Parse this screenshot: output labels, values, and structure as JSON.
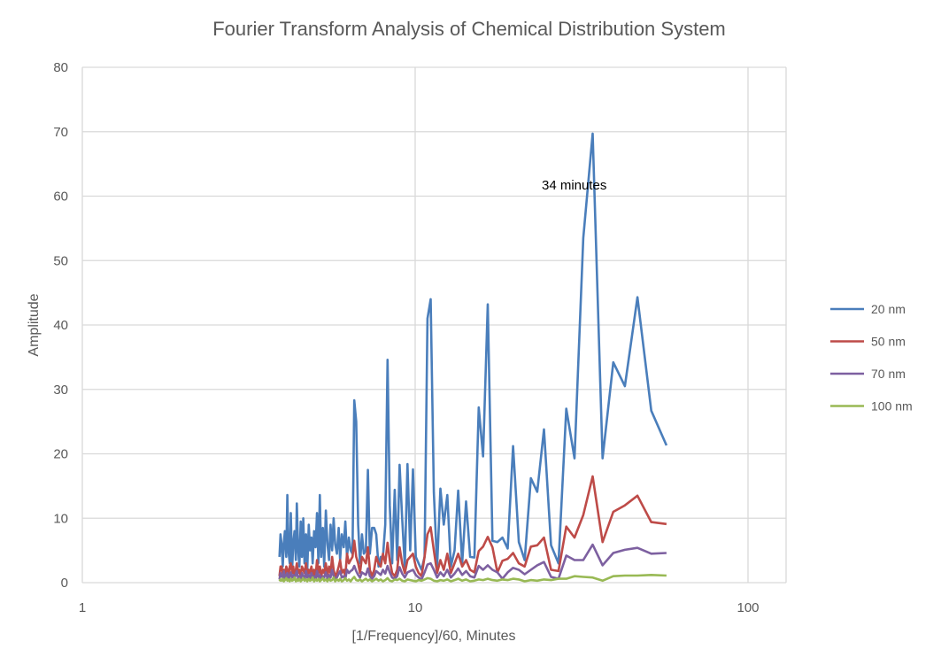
{
  "chart_data": {
    "type": "line",
    "title": "Fourier Transform Analysis of Chemical Distribution System",
    "xlabel": "[1/Frequency]/60, Minutes",
    "ylabel": "Amplitude",
    "x_scale": "log",
    "xlim": [
      1,
      130
    ],
    "ylim": [
      0,
      80
    ],
    "x_ticks": [
      "1",
      "10",
      "100"
    ],
    "y_ticks": [
      "0",
      "10",
      "20",
      "30",
      "40",
      "50",
      "60",
      "70",
      "80"
    ],
    "grid": true,
    "legend_position": "right",
    "annotation": {
      "text": "34 minutes",
      "x": 34.13,
      "y": 69.7
    },
    "x": [
      3.91,
      3.94,
      3.97,
      4.0,
      4.03,
      4.06,
      4.1,
      4.13,
      4.16,
      4.2,
      4.23,
      4.27,
      4.3,
      4.34,
      4.38,
      4.41,
      4.45,
      4.49,
      4.53,
      4.57,
      4.61,
      4.65,
      4.7,
      4.74,
      4.79,
      4.83,
      4.88,
      4.92,
      4.97,
      5.02,
      5.07,
      5.12,
      5.17,
      5.22,
      5.28,
      5.33,
      5.39,
      5.45,
      5.51,
      5.57,
      5.63,
      5.69,
      5.75,
      5.82,
      5.89,
      5.95,
      6.02,
      6.1,
      6.17,
      6.24,
      6.32,
      6.4,
      6.48,
      6.56,
      6.65,
      6.74,
      6.83,
      6.92,
      7.01,
      7.11,
      7.21,
      7.31,
      7.42,
      7.53,
      7.64,
      7.76,
      7.88,
      8.0,
      8.13,
      8.26,
      8.39,
      8.53,
      8.68,
      8.83,
      8.98,
      9.14,
      9.31,
      9.48,
      9.66,
      9.85,
      10.04,
      10.24,
      10.45,
      10.67,
      10.89,
      11.13,
      11.38,
      11.64,
      11.91,
      12.19,
      12.49,
      12.8,
      13.13,
      13.47,
      13.84,
      14.22,
      14.63,
      15.06,
      15.52,
      16.0,
      16.52,
      17.07,
      17.66,
      18.29,
      18.96,
      19.69,
      20.48,
      21.33,
      22.26,
      23.27,
      24.38,
      25.6,
      26.95,
      28.44,
      30.12,
      32.0,
      34.13,
      36.57,
      39.38,
      42.67,
      46.55,
      51.2,
      56.89
    ],
    "series": [
      {
        "name": "20 nm",
        "color": "#4a7ebb",
        "values": [
          4.0,
          7.5,
          6.0,
          2.5,
          6.0,
          8.0,
          4.0,
          13.6,
          5.0,
          3.0,
          10.8,
          2.0,
          6.0,
          8.0,
          3.5,
          12.3,
          5.0,
          2.5,
          9.5,
          4.0,
          10.0,
          3.0,
          7.5,
          2.0,
          9.0,
          5.0,
          7.0,
          3.0,
          8.0,
          5.5,
          10.8,
          3.0,
          13.6,
          4.0,
          8.5,
          2.5,
          11.2,
          6.0,
          3.5,
          9.0,
          5.0,
          10.0,
          6.0,
          4.5,
          8.5,
          3.5,
          7.5,
          5.5,
          9.5,
          4.0,
          7.0,
          5.0,
          4.5,
          28.3,
          25.0,
          9.0,
          3.0,
          7.5,
          4.5,
          5.0,
          17.5,
          4.5,
          8.5,
          8.5,
          7.5,
          2.5,
          4.0,
          4.0,
          9.0,
          34.6,
          12.0,
          3.0,
          14.4,
          3.5,
          18.3,
          10.0,
          2.5,
          18.4,
          5.0,
          17.6,
          4.0,
          3.0,
          2.0,
          4.0,
          41.0,
          44.0,
          14.0,
          2.5,
          14.6,
          9.0,
          13.6,
          2.5,
          5.0,
          14.3,
          3.0,
          12.6,
          4.0,
          3.9,
          27.2,
          19.6,
          43.2,
          6.5,
          6.3,
          7.0,
          5.3,
          21.2,
          6.3,
          3.5,
          16.2,
          14.1,
          23.8,
          5.8,
          3.0,
          27.0,
          19.3,
          53.5,
          69.7,
          19.3,
          34.2,
          30.5,
          44.3,
          26.7,
          21.3
        ]
      },
      {
        "name": "50 nm",
        "color": "#be4b48",
        "values": [
          1.0,
          2.5,
          2.5,
          1.5,
          2.0,
          1.0,
          2.5,
          2.0,
          1.0,
          2.5,
          3.0,
          1.5,
          2.5,
          1.0,
          2.0,
          3.0,
          1.5,
          2.0,
          1.0,
          2.5,
          2.0,
          1.5,
          3.0,
          1.0,
          2.0,
          1.5,
          2.5,
          1.0,
          2.0,
          1.0,
          3.5,
          1.5,
          2.5,
          1.0,
          2.0,
          1.5,
          3.0,
          1.0,
          2.5,
          1.5,
          4.0,
          2.0,
          1.0,
          1.5,
          2.5,
          3.5,
          1.5,
          2.0,
          1.0,
          4.5,
          3.0,
          3.5,
          4.0,
          6.5,
          4.0,
          3.0,
          1.5,
          4.0,
          3.5,
          3.0,
          5.5,
          2.0,
          1.0,
          2.0,
          4.0,
          3.0,
          2.5,
          4.5,
          3.0,
          6.2,
          3.5,
          1.5,
          1.0,
          2.0,
          5.5,
          3.0,
          1.5,
          3.5,
          4.0,
          4.5,
          2.5,
          1.5,
          1.0,
          4.0,
          7.5,
          8.6,
          5.0,
          1.5,
          3.5,
          2.0,
          4.5,
          1.5,
          3.0,
          4.5,
          2.5,
          3.5,
          2.0,
          1.6,
          4.9,
          5.6,
          7.1,
          5.5,
          1.6,
          3.4,
          3.7,
          4.6,
          3.0,
          2.5,
          5.6,
          5.8,
          7.0,
          2.0,
          1.8,
          8.7,
          7.0,
          10.5,
          16.5,
          6.3,
          11.0,
          12.0,
          13.5,
          9.4,
          9.1
        ]
      },
      {
        "name": "70 nm",
        "color": "#7d60a0",
        "values": [
          0.5,
          1.5,
          1.0,
          0.8,
          1.8,
          0.6,
          1.2,
          1.5,
          0.5,
          1.0,
          1.6,
          0.8,
          1.2,
          0.5,
          1.4,
          1.8,
          0.7,
          1.0,
          0.6,
          1.5,
          1.0,
          0.5,
          1.8,
          0.8,
          1.2,
          0.6,
          1.5,
          0.7,
          1.0,
          0.5,
          1.8,
          0.8,
          1.2,
          0.5,
          1.0,
          0.8,
          1.6,
          0.6,
          1.2,
          0.8,
          2.0,
          1.0,
          0.6,
          0.8,
          1.4,
          1.8,
          0.8,
          1.0,
          0.6,
          2.0,
          1.5,
          1.8,
          2.0,
          2.6,
          1.8,
          1.2,
          0.8,
          1.6,
          1.4,
          1.2,
          2.2,
          1.0,
          0.6,
          1.0,
          1.8,
          1.5,
          1.2,
          2.0,
          1.4,
          2.6,
          1.6,
          0.8,
          0.6,
          1.0,
          2.4,
          1.4,
          0.8,
          1.6,
          1.8,
          2.0,
          1.2,
          0.8,
          0.5,
          1.6,
          2.8,
          3.0,
          2.0,
          0.8,
          1.6,
          1.0,
          2.0,
          0.8,
          1.4,
          2.2,
          1.2,
          1.8,
          1.0,
          0.8,
          2.6,
          2.0,
          2.7,
          2.0,
          1.6,
          0.6,
          1.6,
          2.3,
          2.0,
          1.3,
          2.0,
          2.7,
          3.2,
          0.9,
          0.6,
          4.2,
          3.5,
          3.5,
          5.9,
          2.7,
          4.6,
          5.1,
          5.4,
          4.5,
          4.6
        ]
      },
      {
        "name": "100 nm",
        "color": "#98b954",
        "values": [
          0.2,
          0.5,
          0.3,
          0.6,
          0.2,
          0.4,
          0.7,
          0.3,
          0.5,
          0.2,
          0.6,
          0.3,
          0.4,
          0.8,
          0.2,
          0.5,
          0.3,
          0.6,
          0.2,
          0.4,
          0.7,
          0.3,
          0.5,
          0.2,
          0.6,
          0.3,
          0.4,
          0.8,
          0.2,
          0.5,
          0.3,
          0.6,
          0.2,
          0.4,
          0.7,
          0.3,
          0.5,
          0.2,
          0.6,
          0.3,
          0.4,
          0.8,
          0.2,
          0.5,
          0.3,
          0.6,
          0.2,
          0.4,
          0.7,
          0.3,
          0.5,
          0.2,
          0.6,
          0.9,
          0.4,
          0.3,
          0.5,
          0.2,
          0.4,
          0.6,
          0.3,
          0.5,
          0.2,
          0.4,
          0.6,
          0.3,
          0.5,
          0.2,
          0.4,
          0.7,
          0.3,
          0.2,
          0.5,
          0.4,
          0.6,
          0.3,
          0.2,
          0.5,
          0.4,
          0.3,
          0.2,
          0.4,
          0.3,
          0.5,
          0.7,
          0.6,
          0.3,
          0.2,
          0.4,
          0.3,
          0.5,
          0.2,
          0.4,
          0.6,
          0.3,
          0.5,
          0.2,
          0.3,
          0.5,
          0.4,
          0.6,
          0.4,
          0.3,
          0.5,
          0.4,
          0.6,
          0.5,
          0.2,
          0.4,
          0.3,
          0.5,
          0.4,
          0.6,
          0.6,
          1.0,
          0.9,
          0.8,
          0.3,
          1.0,
          1.1,
          1.1,
          1.2,
          1.1
        ]
      }
    ]
  }
}
